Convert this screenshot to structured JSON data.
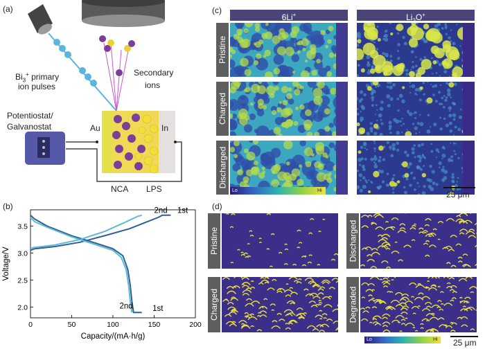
{
  "panel_labels": {
    "a": "(a)",
    "b": "(b)",
    "c": "(c)",
    "d": "(d)"
  },
  "schematic": {
    "bi_label_1": "Bi",
    "bi_label_sub": "3",
    "bi_label_sup": "+",
    "bi_label_2": " primary",
    "bi_label_3": "ion pulses",
    "secondary_label_1": "Secondary",
    "secondary_label_2": "ions",
    "potentiostat_1": "Potentiostat/",
    "potentiostat_2": "Galvanostat",
    "au": "Au",
    "in": "In",
    "nca": "NCA",
    "lps": "LPS"
  },
  "panel_c": {
    "col1_base": "6Li",
    "col1_sup": "+",
    "col2_base": "Li",
    "col2_sub": "2",
    "col2_mid": "O",
    "col2_sup": "+",
    "rows": [
      "Pristine",
      "Charged",
      "Discharged"
    ],
    "colorbar_lo": "Lo",
    "colorbar_hi": "Hi",
    "scale": "25 μm"
  },
  "panel_d": {
    "left_rows": [
      "Pristine",
      "Charged"
    ],
    "right_rows": [
      "Discharged",
      "Degraded"
    ],
    "colorbar_lo": "Lo",
    "colorbar_hi": "Hi",
    "scale": "25 μm"
  },
  "colors": {
    "map_bg": "#3b2f8a",
    "highlight": "#f2e83a",
    "header": "#4a4579"
  },
  "chart_data": {
    "type": "line",
    "xlabel": "Capacity/(mA·h/g)",
    "ylabel": "Voltage/V",
    "xlim": [
      0,
      200
    ],
    "ylim": [
      1.8,
      3.8
    ],
    "xticks": [
      0,
      50,
      100,
      150,
      200
    ],
    "yticks": [
      2.0,
      2.5,
      3.0,
      3.5
    ],
    "annotations": [
      "2nd",
      "1st",
      "2nd",
      "1st"
    ],
    "series": [
      {
        "name": "1st",
        "branch": "charge",
        "color": "#2f5e8f",
        "x": [
          0,
          5,
          30,
          60,
          90,
          120,
          140,
          155,
          160,
          170
        ],
        "y": [
          3.05,
          3.08,
          3.12,
          3.2,
          3.32,
          3.45,
          3.57,
          3.66,
          3.7,
          3.7
        ]
      },
      {
        "name": "1st",
        "branch": "discharge",
        "color": "#2f5e8f",
        "x": [
          0,
          5,
          20,
          50,
          80,
          100,
          112,
          118,
          121,
          123,
          125,
          135
        ],
        "y": [
          3.7,
          3.63,
          3.5,
          3.32,
          3.18,
          3.08,
          2.95,
          2.7,
          2.4,
          2.1,
          1.9,
          1.9
        ]
      },
      {
        "name": "2nd",
        "branch": "charge",
        "color": "#5bb8d6",
        "x": [
          0,
          3,
          30,
          60,
          90,
          115,
          130,
          135
        ],
        "y": [
          3.08,
          3.1,
          3.15,
          3.25,
          3.4,
          3.57,
          3.68,
          3.7
        ]
      },
      {
        "name": "2nd",
        "branch": "discharge",
        "color": "#5bb8d6",
        "x": [
          0,
          5,
          20,
          50,
          80,
          100,
          110,
          116,
          119,
          121,
          123
        ],
        "y": [
          3.66,
          3.58,
          3.48,
          3.3,
          3.15,
          3.05,
          2.92,
          2.7,
          2.4,
          2.1,
          1.9
        ]
      }
    ]
  }
}
